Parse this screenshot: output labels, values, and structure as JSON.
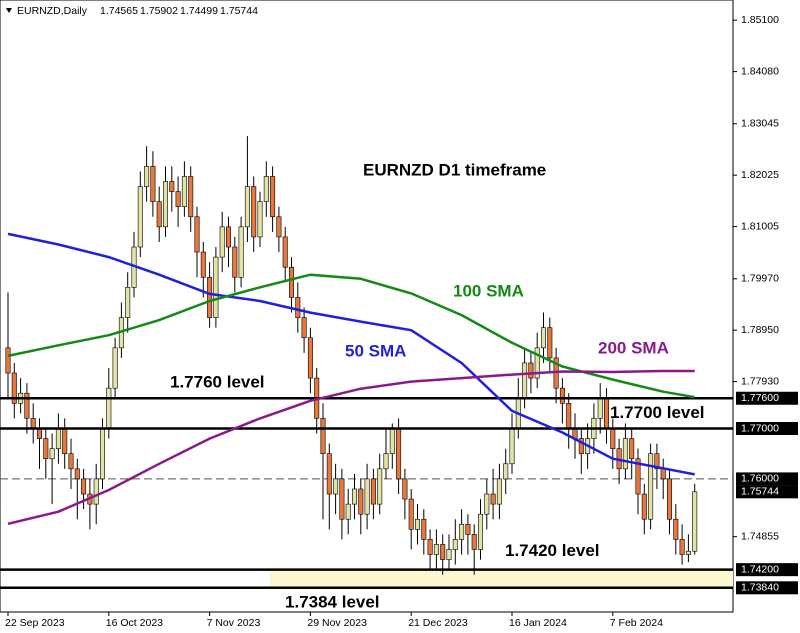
{
  "chart_data": {
    "type": "candlestick",
    "symbol": "EURNZD,Daily",
    "title": "EURNZD D1 timeframe",
    "up_color": "#e3e3a6",
    "down_color": "#e8773e",
    "categories": [
      "22 Sep 2023",
      null,
      null,
      null,
      null,
      null,
      null,
      null,
      null,
      null,
      null,
      null,
      null,
      null,
      null,
      null,
      "16 Oct 2023",
      null,
      null,
      null,
      null,
      null,
      null,
      null,
      null,
      null,
      null,
      null,
      null,
      null,
      null,
      null,
      "7 Nov 2023",
      null,
      null,
      null,
      null,
      null,
      null,
      null,
      null,
      null,
      null,
      null,
      null,
      null,
      null,
      null,
      "29 Nov 2023",
      null,
      null,
      null,
      null,
      null,
      null,
      null,
      null,
      null,
      null,
      null,
      null,
      null,
      null,
      null,
      "21 Dec 2023",
      null,
      null,
      null,
      null,
      null,
      null,
      null,
      null,
      null,
      null,
      null,
      null,
      null,
      null,
      null,
      "16 Jan 2024",
      null,
      null,
      null,
      null,
      null,
      null,
      null,
      null,
      null,
      null,
      null,
      null,
      null,
      null,
      null,
      "7 Feb 2024",
      null,
      null,
      null,
      null,
      null,
      null,
      null,
      null,
      null,
      null,
      null,
      null,
      null
    ],
    "open": [
      1.786,
      1.781,
      1.775,
      1.777,
      1.772,
      1.77,
      1.768,
      1.764,
      1.766,
      1.77,
      1.765,
      1.762,
      1.76,
      1.757,
      1.755,
      1.76,
      1.77,
      1.778,
      1.786,
      1.792,
      1.798,
      1.806,
      1.818,
      1.822,
      1.815,
      1.81,
      1.819,
      1.817,
      1.814,
      1.82,
      1.812,
      1.805,
      1.8,
      1.792,
      1.804,
      1.81,
      1.806,
      1.8,
      1.81,
      1.818,
      1.808,
      1.815,
      1.82,
      1.812,
      1.808,
      1.802,
      1.796,
      1.792,
      1.788,
      1.78,
      1.772,
      1.765,
      1.757,
      1.76,
      1.752,
      1.755,
      1.758,
      1.753,
      1.76,
      1.755,
      1.762,
      1.765,
      1.77,
      1.76,
      1.756,
      1.75,
      1.752,
      1.748,
      1.745,
      1.747,
      1.744,
      1.746,
      1.748,
      1.751,
      1.749,
      1.746,
      1.753,
      1.757,
      1.755,
      1.76,
      1.763,
      1.77,
      1.776,
      1.783,
      1.78,
      1.786,
      1.79,
      1.784,
      1.778,
      1.775,
      1.77,
      1.768,
      1.765,
      1.768,
      1.772,
      1.776,
      1.77,
      1.766,
      1.762,
      1.768,
      1.764,
      1.757,
      1.752,
      1.765,
      1.762,
      1.76,
      1.752,
      1.748,
      1.745,
      1.74565
    ],
    "high": [
      1.797,
      1.783,
      1.78,
      1.779,
      1.775,
      1.772,
      1.77,
      1.769,
      1.773,
      1.772,
      1.768,
      1.764,
      1.762,
      1.76,
      1.763,
      1.772,
      1.782,
      1.788,
      1.795,
      1.801,
      1.809,
      1.821,
      1.826,
      1.825,
      1.818,
      1.822,
      1.822,
      1.82,
      1.823,
      1.822,
      1.814,
      1.807,
      1.803,
      1.806,
      1.813,
      1.812,
      1.808,
      1.812,
      1.828,
      1.82,
      1.817,
      1.823,
      1.822,
      1.814,
      1.81,
      1.804,
      1.799,
      1.794,
      1.79,
      1.782,
      1.775,
      1.767,
      1.763,
      1.762,
      1.758,
      1.761,
      1.76,
      1.763,
      1.762,
      1.765,
      1.77,
      1.771,
      1.772,
      1.762,
      1.758,
      1.755,
      1.754,
      1.75,
      1.75,
      1.749,
      1.749,
      1.752,
      1.754,
      1.753,
      1.751,
      1.756,
      1.76,
      1.762,
      1.763,
      1.766,
      1.773,
      1.78,
      1.786,
      1.785,
      1.789,
      1.793,
      1.792,
      1.786,
      1.78,
      1.777,
      1.773,
      1.77,
      1.771,
      1.775,
      1.779,
      1.778,
      1.772,
      1.768,
      1.771,
      1.77,
      1.766,
      1.759,
      1.767,
      1.767,
      1.764,
      1.762,
      1.755,
      1.751,
      1.749,
      1.75902
    ],
    "low": [
      1.776,
      1.772,
      1.773,
      1.769,
      1.767,
      1.762,
      1.76,
      1.755,
      1.763,
      1.762,
      1.758,
      1.752,
      1.754,
      1.75,
      1.751,
      1.758,
      1.768,
      1.776,
      1.784,
      1.789,
      1.796,
      1.804,
      1.815,
      1.812,
      1.807,
      1.808,
      1.813,
      1.81,
      1.812,
      1.809,
      1.8,
      1.796,
      1.79,
      1.79,
      1.801,
      1.802,
      1.797,
      1.798,
      1.807,
      1.805,
      1.806,
      1.812,
      1.809,
      1.805,
      1.799,
      1.793,
      1.789,
      1.785,
      1.777,
      1.769,
      1.752,
      1.75,
      1.753,
      1.748,
      1.749,
      1.752,
      1.749,
      1.75,
      1.752,
      1.753,
      1.76,
      1.762,
      1.757,
      1.752,
      1.746,
      1.747,
      1.745,
      1.742,
      1.742,
      1.741,
      1.742,
      1.743,
      1.745,
      1.745,
      1.741,
      1.744,
      1.75,
      1.752,
      1.752,
      1.757,
      1.761,
      1.768,
      1.774,
      1.777,
      1.778,
      1.783,
      1.781,
      1.775,
      1.771,
      1.766,
      1.764,
      1.761,
      1.762,
      1.765,
      1.769,
      1.767,
      1.762,
      1.759,
      1.76,
      1.76,
      1.753,
      1.749,
      1.75,
      1.758,
      1.756,
      1.749,
      1.745,
      1.743,
      1.7435,
      1.74499
    ],
    "close": [
      1.781,
      1.775,
      1.777,
      1.772,
      1.77,
      1.768,
      1.764,
      1.766,
      1.77,
      1.765,
      1.762,
      1.76,
      1.757,
      1.755,
      1.76,
      1.77,
      1.778,
      1.786,
      1.792,
      1.798,
      1.806,
      1.818,
      1.822,
      1.815,
      1.81,
      1.819,
      1.817,
      1.814,
      1.82,
      1.812,
      1.805,
      1.8,
      1.792,
      1.804,
      1.81,
      1.806,
      1.8,
      1.81,
      1.818,
      1.808,
      1.815,
      1.82,
      1.812,
      1.808,
      1.802,
      1.796,
      1.792,
      1.788,
      1.78,
      1.772,
      1.765,
      1.757,
      1.76,
      1.752,
      1.755,
      1.758,
      1.753,
      1.76,
      1.755,
      1.762,
      1.765,
      1.77,
      1.76,
      1.756,
      1.75,
      1.752,
      1.748,
      1.745,
      1.747,
      1.744,
      1.746,
      1.748,
      1.751,
      1.749,
      1.746,
      1.753,
      1.757,
      1.755,
      1.76,
      1.763,
      1.77,
      1.776,
      1.783,
      1.78,
      1.786,
      1.79,
      1.784,
      1.778,
      1.775,
      1.77,
      1.768,
      1.765,
      1.768,
      1.772,
      1.776,
      1.77,
      1.766,
      1.762,
      1.768,
      1.764,
      1.757,
      1.752,
      1.765,
      1.762,
      1.76,
      1.752,
      1.748,
      1.745,
      1.74565,
      1.75744
    ],
    "series": [
      {
        "name": "50 SMA",
        "color": "#1f1fe0",
        "x": [
          0,
          8,
          16,
          24,
          32,
          40,
          48,
          56,
          64,
          72,
          80,
          88,
          96,
          104,
          109
        ],
        "values": [
          1.8086,
          1.8065,
          1.804,
          1.8005,
          1.7967,
          1.7953,
          1.793,
          1.7912,
          1.7895,
          1.783,
          1.7735,
          1.7692,
          1.764,
          1.7621,
          1.7609
        ]
      },
      {
        "name": "100 SMA",
        "color": "#138a13",
        "x": [
          0,
          8,
          16,
          24,
          32,
          40,
          48,
          56,
          64,
          72,
          80,
          88,
          96,
          104,
          109
        ],
        "values": [
          1.7844,
          1.7865,
          1.7885,
          1.7915,
          1.7953,
          1.798,
          1.8005,
          1.7997,
          1.7968,
          1.7925,
          1.787,
          1.7823,
          1.7797,
          1.7773,
          1.7762
        ]
      },
      {
        "name": "200 SMA",
        "color": "#8a1a8a",
        "x": [
          0,
          8,
          16,
          24,
          32,
          40,
          48,
          56,
          64,
          72,
          80,
          88,
          96,
          104,
          109
        ],
        "values": [
          1.7511,
          1.7535,
          1.7578,
          1.763,
          1.768,
          1.772,
          1.7755,
          1.7779,
          1.7793,
          1.78,
          1.7807,
          1.7813,
          1.7812,
          1.7814,
          1.7814
        ]
      }
    ],
    "levels": [
      {
        "value": 1.776,
        "label": "1.7760 level"
      },
      {
        "value": 1.77,
        "label": "1.7700 level"
      },
      {
        "value": 1.742,
        "label": "1.7420 level"
      },
      {
        "value": 1.7384,
        "label": "1.7384 level"
      }
    ],
    "zone_color": "#fbf8d2",
    "ylim": [
      1.7336,
      1.855
    ],
    "yticks": [
      {
        "value": 1.851,
        "label": "1.85100"
      },
      {
        "value": 1.8408,
        "label": "1.84080"
      },
      {
        "value": 1.83045,
        "label": "1.83045"
      },
      {
        "value": 1.82025,
        "label": "1.82025"
      },
      {
        "value": 1.81005,
        "label": "1.81005"
      },
      {
        "value": 1.7997,
        "label": "1.79970"
      },
      {
        "value": 1.7895,
        "label": "1.78950"
      },
      {
        "value": 1.7793,
        "label": "1.77930"
      },
      {
        "value": 1.74855,
        "label": "1.74855"
      }
    ],
    "marker_ticks": [
      {
        "value": 1.776,
        "label": "1.77600"
      },
      {
        "value": 1.77,
        "label": "1.77000"
      },
      {
        "value": 1.76,
        "label": "1.76000",
        "style": "dashed"
      },
      1.75744,
      {
        "value": 1.742,
        "label": "1.74200"
      },
      {
        "value": 1.7384,
        "label": "1.73840"
      }
    ]
  }
}
